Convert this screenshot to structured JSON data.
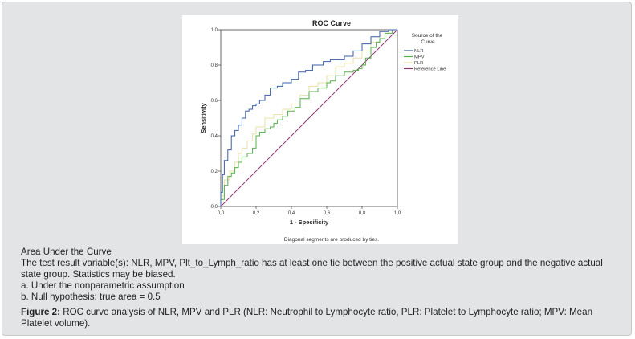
{
  "chart_data": {
    "type": "line",
    "title": "ROC Curve",
    "xlabel": "1 - Specificity",
    "ylabel": "Sensitivity",
    "xlim": [
      0,
      1
    ],
    "ylim": [
      0,
      1
    ],
    "xticks": [
      "0,0",
      "0,2",
      "0,4",
      "0,6",
      "0,8",
      "1,0"
    ],
    "yticks": [
      "0,0",
      "0,2",
      "0,4",
      "0,6",
      "0,8",
      "1,0"
    ],
    "tick_values": [
      0,
      0.2,
      0.4,
      0.6,
      0.8,
      1.0
    ],
    "legend_title": "Source of the Curve",
    "legend_position": "right",
    "footnote": "Diagonal segments are produced by ties.",
    "series": [
      {
        "name": "NLR",
        "color": "#3a5fa8",
        "x": [
          0,
          0.01,
          0.02,
          0.04,
          0.06,
          0.08,
          0.1,
          0.12,
          0.14,
          0.16,
          0.18,
          0.2,
          0.22,
          0.25,
          0.28,
          0.32,
          0.35,
          0.38,
          0.4,
          0.44,
          0.48,
          0.52,
          0.55,
          0.58,
          0.62,
          0.66,
          0.7,
          0.75,
          0.8,
          0.85,
          0.9,
          0.95,
          1.0
        ],
        "y": [
          0,
          0.08,
          0.18,
          0.26,
          0.32,
          0.4,
          0.43,
          0.46,
          0.5,
          0.54,
          0.55,
          0.57,
          0.58,
          0.6,
          0.63,
          0.67,
          0.68,
          0.7,
          0.7,
          0.72,
          0.76,
          0.77,
          0.8,
          0.8,
          0.82,
          0.83,
          0.83,
          0.85,
          0.88,
          0.92,
          0.96,
          0.99,
          1.0
        ]
      },
      {
        "name": "MPV",
        "color": "#56b04a",
        "x": [
          0,
          0.02,
          0.04,
          0.06,
          0.08,
          0.1,
          0.12,
          0.15,
          0.18,
          0.2,
          0.22,
          0.25,
          0.28,
          0.3,
          0.32,
          0.35,
          0.38,
          0.42,
          0.45,
          0.5,
          0.55,
          0.6,
          0.62,
          0.65,
          0.7,
          0.75,
          0.78,
          0.8,
          0.82,
          0.85,
          0.88,
          0.9,
          0.93,
          0.97,
          1.0
        ],
        "y": [
          0,
          0.04,
          0.12,
          0.17,
          0.19,
          0.22,
          0.25,
          0.28,
          0.3,
          0.33,
          0.4,
          0.42,
          0.44,
          0.45,
          0.47,
          0.49,
          0.51,
          0.54,
          0.56,
          0.61,
          0.65,
          0.67,
          0.7,
          0.71,
          0.74,
          0.76,
          0.77,
          0.78,
          0.8,
          0.84,
          0.9,
          0.93,
          0.95,
          0.98,
          1.0
        ]
      },
      {
        "name": "PLR",
        "color": "#e8e0a8",
        "x": [
          0,
          0.02,
          0.05,
          0.08,
          0.1,
          0.12,
          0.15,
          0.18,
          0.2,
          0.25,
          0.3,
          0.35,
          0.4,
          0.45,
          0.5,
          0.55,
          0.6,
          0.65,
          0.7,
          0.75,
          0.8,
          0.85,
          0.9,
          0.95,
          1.0
        ],
        "y": [
          0,
          0.06,
          0.15,
          0.2,
          0.25,
          0.3,
          0.33,
          0.37,
          0.41,
          0.45,
          0.5,
          0.52,
          0.55,
          0.58,
          0.63,
          0.68,
          0.7,
          0.74,
          0.79,
          0.81,
          0.84,
          0.88,
          0.93,
          0.97,
          1.0
        ]
      },
      {
        "name": "Reference Line",
        "color": "#8c3a72",
        "x": [
          0,
          1
        ],
        "y": [
          0,
          1
        ]
      }
    ]
  },
  "caption": {
    "line1": "Area Under the Curve",
    "line2": "The test result variable(s): NLR, MPV, Plt_to_Lymph_ratio has at least one tie between the positive actual state group and the negative actual state group. Statistics may be biased.",
    "line3": "a. Under the nonparametric assumption",
    "line4": "b. Null hypothesis: true area = 0.5",
    "figure_label": "Figure 2:",
    "figure_text": " ROC curve analysis of NLR, MPV and PLR (NLR: Neutrophil to Lymphocyte ratio, PLR: Platelet to Lymphocyte ratio; MPV: Mean Platelet volume)."
  }
}
